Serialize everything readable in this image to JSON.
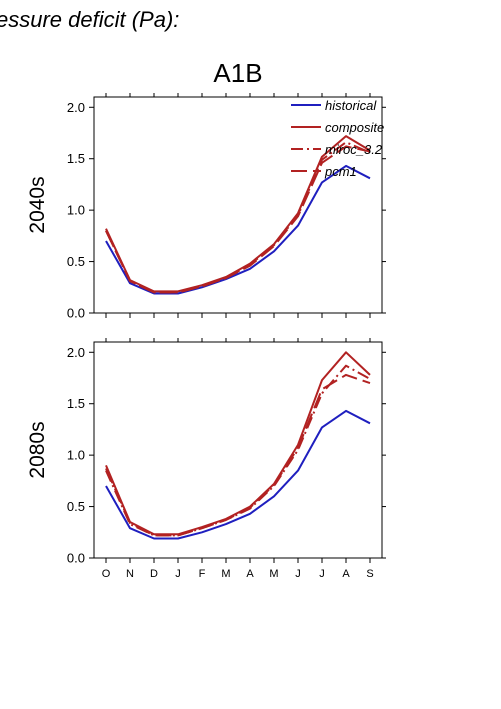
{
  "figure": {
    "title_fragment": "essure deficit (Pa):",
    "scenario": "A1B"
  },
  "chart_data": [
    {
      "type": "line",
      "row_label": "2040s",
      "categories": [
        "O",
        "N",
        "D",
        "J",
        "F",
        "M",
        "A",
        "M",
        "J",
        "J",
        "A",
        "S"
      ],
      "ylim": [
        0,
        2.1
      ],
      "yticks": [
        "0.0",
        "0.5",
        "1.0",
        "1.5",
        "2.0"
      ],
      "legend_position": "top-right",
      "series": [
        {
          "name": "historical",
          "color": "#1f1fbf",
          "dash": "solid",
          "values": [
            0.7,
            0.29,
            0.19,
            0.19,
            0.25,
            0.33,
            0.43,
            0.6,
            0.85,
            1.27,
            1.43,
            1.31
          ]
        },
        {
          "name": "composite",
          "color": "#b22222",
          "dash": "solid",
          "values": [
            0.82,
            0.32,
            0.21,
            0.21,
            0.27,
            0.35,
            0.48,
            0.67,
            0.97,
            1.52,
            1.72,
            1.58
          ]
        },
        {
          "name": "miroc_3.2",
          "color": "#b22222",
          "dash": "dashdot",
          "values": [
            0.8,
            0.31,
            0.2,
            0.2,
            0.26,
            0.34,
            0.47,
            0.66,
            0.95,
            1.49,
            1.66,
            1.56
          ]
        },
        {
          "name": "pcm1",
          "color": "#b22222",
          "dash": "longdash",
          "values": [
            0.8,
            0.31,
            0.2,
            0.2,
            0.26,
            0.34,
            0.46,
            0.65,
            0.94,
            1.46,
            1.62,
            1.57
          ]
        }
      ]
    },
    {
      "type": "line",
      "row_label": "2080s",
      "categories": [
        "O",
        "N",
        "D",
        "J",
        "F",
        "M",
        "A",
        "M",
        "J",
        "J",
        "A",
        "S"
      ],
      "ylim": [
        0,
        2.1
      ],
      "yticks": [
        "0.0",
        "0.5",
        "1.0",
        "1.5",
        "2.0"
      ],
      "series": [
        {
          "name": "historical",
          "color": "#1f1fbf",
          "dash": "solid",
          "values": [
            0.7,
            0.29,
            0.19,
            0.19,
            0.25,
            0.33,
            0.43,
            0.6,
            0.85,
            1.27,
            1.43,
            1.31
          ]
        },
        {
          "name": "composite",
          "color": "#b22222",
          "dash": "solid",
          "values": [
            0.9,
            0.35,
            0.23,
            0.23,
            0.3,
            0.38,
            0.5,
            0.72,
            1.1,
            1.73,
            2.0,
            1.78
          ]
        },
        {
          "name": "miroc_3.2",
          "color": "#b22222",
          "dash": "dashdot",
          "values": [
            0.85,
            0.33,
            0.22,
            0.22,
            0.29,
            0.37,
            0.48,
            0.7,
            1.05,
            1.6,
            1.87,
            1.74
          ]
        },
        {
          "name": "pcm1",
          "color": "#b22222",
          "dash": "longdash",
          "values": [
            0.87,
            0.34,
            0.22,
            0.22,
            0.29,
            0.37,
            0.49,
            0.71,
            1.07,
            1.64,
            1.78,
            1.7
          ]
        }
      ]
    }
  ]
}
